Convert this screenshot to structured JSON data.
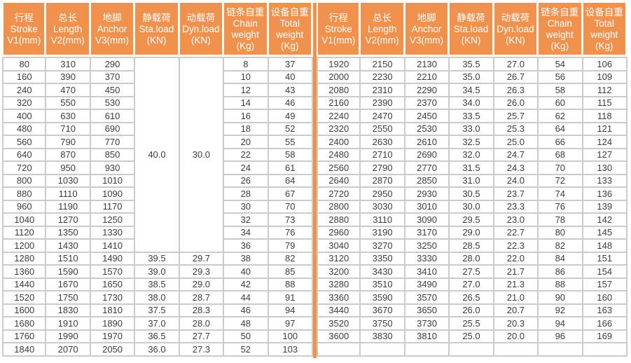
{
  "colors": {
    "header_bg": "#F0924E",
    "divider": "#F0924E",
    "grid_line": "#CBCBCB",
    "cell_text": "#3C3C3C",
    "header_text": "#FFFFFF"
  },
  "columns": [
    {
      "key": "stroke",
      "zh": "行程",
      "en": "Stroke",
      "unit": "V1(mm)"
    },
    {
      "key": "length",
      "zh": "总长",
      "en": "Length",
      "unit": "V2(mm)"
    },
    {
      "key": "anchor",
      "zh": "地脚",
      "en": "Anchor",
      "unit": "V3(mm)"
    },
    {
      "key": "sta-load",
      "zh": "静载荷",
      "en": "Sta.load",
      "unit": "(KN)"
    },
    {
      "key": "dyn-load",
      "zh": "动载荷",
      "en": "Dyn.load",
      "unit": "(KN)"
    },
    {
      "key": "chain-weight",
      "zh": "链条自重",
      "en": "Chain weight",
      "unit": "(Kg)"
    },
    {
      "key": "total-weight",
      "zh": "设备自重",
      "en": "Total weight",
      "unit": "(Kg)"
    }
  ],
  "left_half": {
    "merged": {
      "sta_load": "40.0",
      "dyn_load": "30.0",
      "row_span": 15
    },
    "rows": [
      [
        "80",
        "310",
        "290",
        null,
        null,
        "8",
        "37"
      ],
      [
        "160",
        "390",
        "370",
        null,
        null,
        "10",
        "40"
      ],
      [
        "240",
        "470",
        "450",
        null,
        null,
        "12",
        "43"
      ],
      [
        "320",
        "550",
        "530",
        null,
        null,
        "14",
        "46"
      ],
      [
        "400",
        "630",
        "610",
        null,
        null,
        "16",
        "49"
      ],
      [
        "480",
        "710",
        "690",
        null,
        null,
        "18",
        "52"
      ],
      [
        "560",
        "790",
        "770",
        null,
        null,
        "20",
        "55"
      ],
      [
        "640",
        "870",
        "850",
        null,
        null,
        "22",
        "58"
      ],
      [
        "720",
        "950",
        "930",
        null,
        null,
        "24",
        "61"
      ],
      [
        "800",
        "1030",
        "1010",
        null,
        null,
        "26",
        "64"
      ],
      [
        "880",
        "1110",
        "1090",
        null,
        null,
        "28",
        "67"
      ],
      [
        "960",
        "1190",
        "1170",
        null,
        null,
        "30",
        "70"
      ],
      [
        "1040",
        "1270",
        "1250",
        null,
        null,
        "32",
        "73"
      ],
      [
        "1120",
        "1350",
        "1330",
        null,
        null,
        "34",
        "76"
      ],
      [
        "1200",
        "1430",
        "1410",
        null,
        null,
        "36",
        "79"
      ],
      [
        "1280",
        "1510",
        "1490",
        "39.5",
        "29.7",
        "38",
        "82"
      ],
      [
        "1360",
        "1590",
        "1570",
        "39.0",
        "29.3",
        "40",
        "85"
      ],
      [
        "1440",
        "1670",
        "1650",
        "38.5",
        "29.0",
        "42",
        "88"
      ],
      [
        "1520",
        "1750",
        "1730",
        "38.0",
        "28.7",
        "44",
        "91"
      ],
      [
        "1600",
        "1830",
        "1810",
        "37.5",
        "28.3",
        "46",
        "94"
      ],
      [
        "1680",
        "1910",
        "1890",
        "37.0",
        "28.0",
        "48",
        "97"
      ],
      [
        "1760",
        "1990",
        "1970",
        "36.5",
        "27.7",
        "50",
        "100"
      ],
      [
        "1840",
        "2070",
        "2050",
        "36.0",
        "27.3",
        "52",
        "103"
      ]
    ]
  },
  "right_half": {
    "rows": [
      [
        "1920",
        "2150",
        "2130",
        "35.5",
        "27.0",
        "54",
        "106"
      ],
      [
        "2000",
        "2230",
        "2210",
        "35.0",
        "26.7",
        "56",
        "109"
      ],
      [
        "2080",
        "2310",
        "2290",
        "34.5",
        "26.3",
        "58",
        "112"
      ],
      [
        "2160",
        "2390",
        "2370",
        "34.0",
        "26.0",
        "60",
        "115"
      ],
      [
        "2240",
        "2470",
        "2450",
        "33.5",
        "25.7",
        "62",
        "118"
      ],
      [
        "2320",
        "2550",
        "2530",
        "33.0",
        "25.3",
        "64",
        "121"
      ],
      [
        "2400",
        "2630",
        "2610",
        "32.5",
        "25.0",
        "66",
        "124"
      ],
      [
        "2480",
        "2710",
        "2690",
        "32.0",
        "24.7",
        "68",
        "127"
      ],
      [
        "2560",
        "2790",
        "2770",
        "31.5",
        "24.3",
        "70",
        "130"
      ],
      [
        "2640",
        "2870",
        "2850",
        "31.0",
        "24.0",
        "72",
        "133"
      ],
      [
        "2720",
        "2950",
        "2930",
        "30.5",
        "23.7",
        "74",
        "136"
      ],
      [
        "2800",
        "3030",
        "3010",
        "30.0",
        "23.3",
        "76",
        "139"
      ],
      [
        "2880",
        "3110",
        "3090",
        "29.5",
        "23.0",
        "78",
        "142"
      ],
      [
        "2960",
        "3190",
        "3170",
        "29.0",
        "22.7",
        "80",
        "145"
      ],
      [
        "3040",
        "3270",
        "3250",
        "28.5",
        "22.3",
        "82",
        "148"
      ],
      [
        "3120",
        "3350",
        "3330",
        "28.0",
        "22.0",
        "84",
        "151"
      ],
      [
        "3200",
        "3430",
        "3410",
        "27.5",
        "21.7",
        "86",
        "154"
      ],
      [
        "3280",
        "3510",
        "3490",
        "27.0",
        "21.3",
        "88",
        "157"
      ],
      [
        "3360",
        "3590",
        "3570",
        "26.5",
        "21.0",
        "90",
        "160"
      ],
      [
        "3440",
        "3670",
        "3650",
        "26.0",
        "20.7",
        "92",
        "163"
      ],
      [
        "3520",
        "3750",
        "3730",
        "25.5",
        "20.3",
        "94",
        "166"
      ],
      [
        "3600",
        "3830",
        "3810",
        "25.0",
        "20.0",
        "96",
        "169"
      ],
      [
        "",
        "",
        "",
        "",
        "",
        "",
        ""
      ]
    ]
  }
}
